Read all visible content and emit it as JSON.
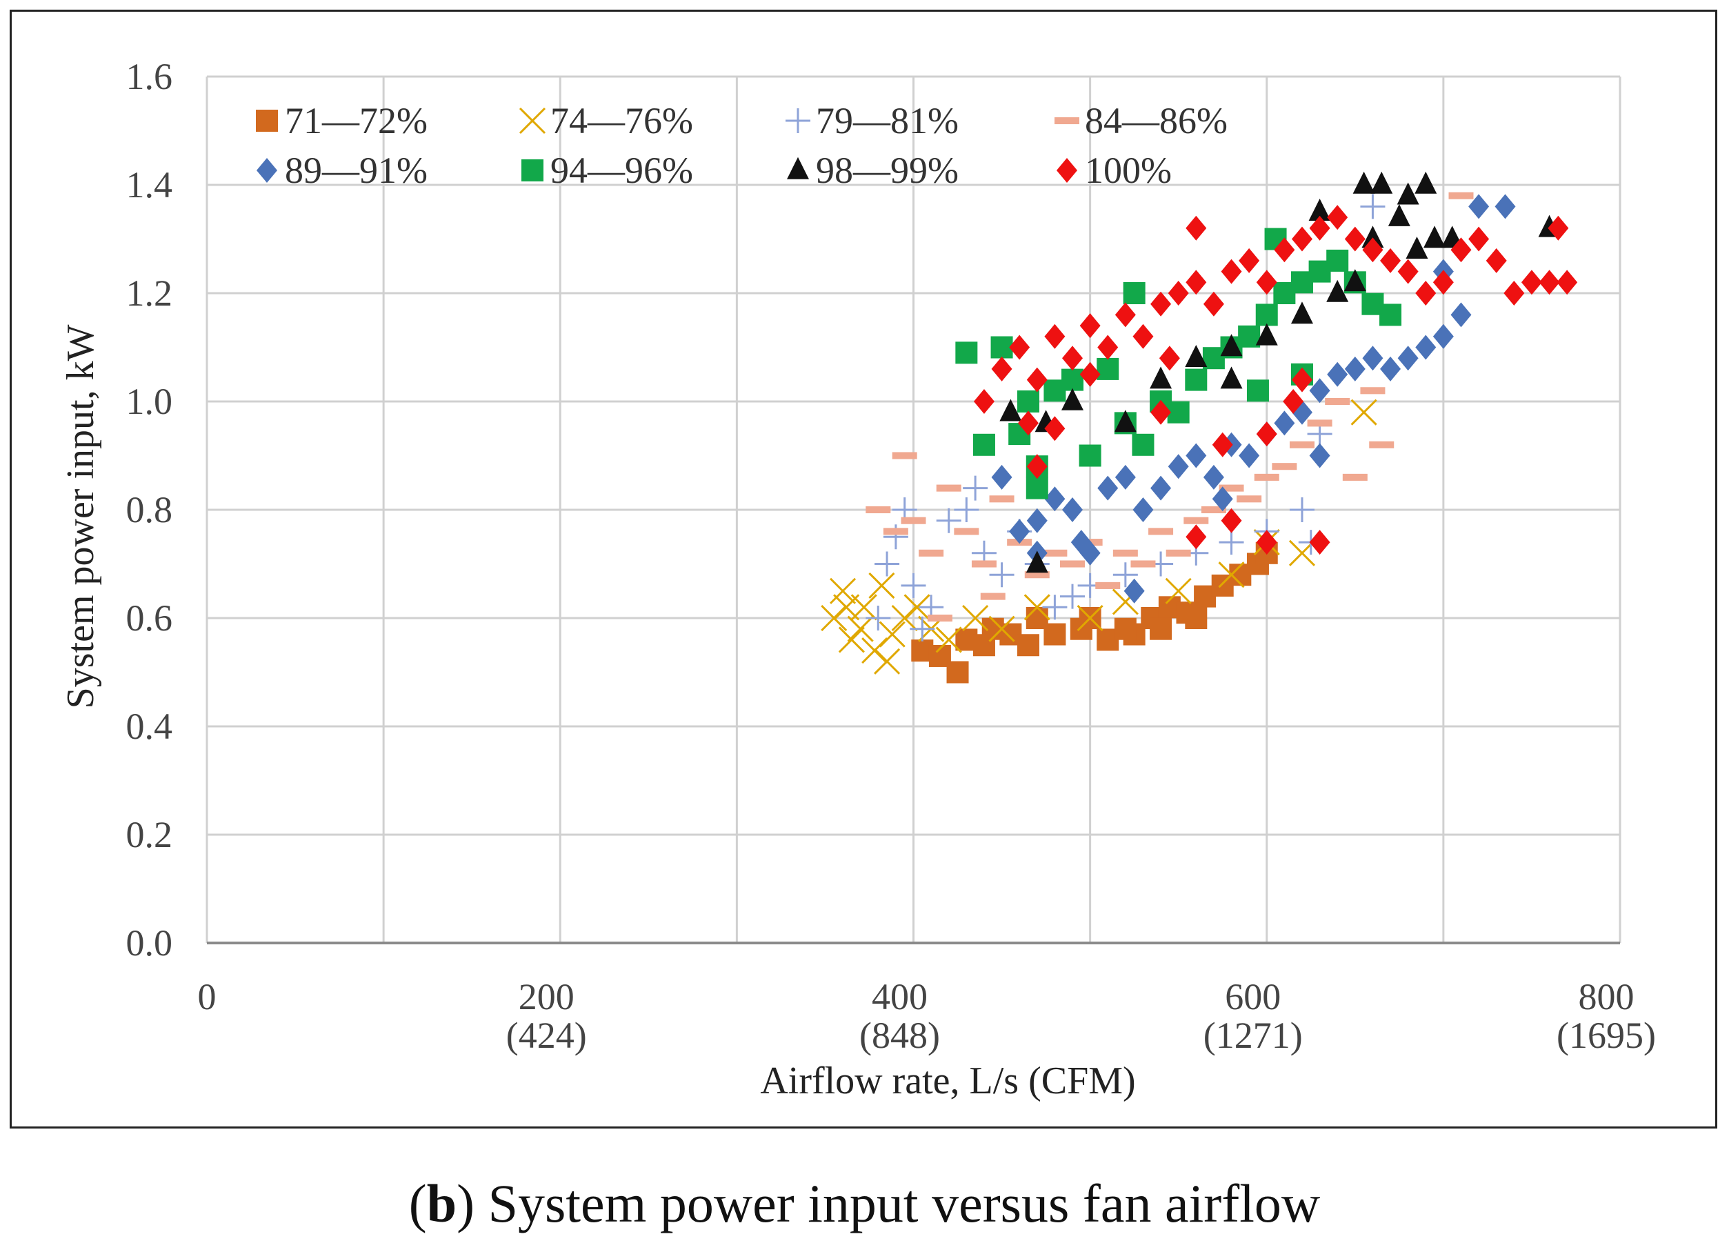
{
  "caption": {
    "panel": "b",
    "text": "System power input versus fan airflow"
  },
  "chart_data": {
    "type": "scatter",
    "title": "",
    "xlabel": "Airflow rate, L/s (CFM)",
    "ylabel": "System power input, kW",
    "xlim": [
      0,
      800
    ],
    "ylim": [
      0.0,
      1.6
    ],
    "x_ticks": [
      {
        "value": 0,
        "label": "0",
        "sub": ""
      },
      {
        "value": 200,
        "label": "200",
        "sub": "(424)"
      },
      {
        "value": 400,
        "label": "400",
        "sub": "(848)"
      },
      {
        "value": 600,
        "label": "600",
        "sub": "(1271)"
      },
      {
        "value": 800,
        "label": "800",
        "sub": "(1695)"
      }
    ],
    "x_gridlines": [
      0,
      100,
      200,
      300,
      400,
      500,
      600,
      700,
      800
    ],
    "y_ticks": [
      "0.0",
      "0.2",
      "0.4",
      "0.6",
      "0.8",
      "1.0",
      "1.2",
      "1.4",
      "1.6"
    ],
    "grid": true,
    "legend_position": "top-left",
    "series": [
      {
        "name": "71—72%",
        "marker": "square",
        "color": "#d2691e",
        "points": [
          [
            405,
            0.54
          ],
          [
            415,
            0.53
          ],
          [
            425,
            0.5
          ],
          [
            430,
            0.56
          ],
          [
            440,
            0.55
          ],
          [
            455,
            0.57
          ],
          [
            465,
            0.55
          ],
          [
            480,
            0.57
          ],
          [
            495,
            0.58
          ],
          [
            510,
            0.56
          ],
          [
            525,
            0.57
          ],
          [
            535,
            0.6
          ],
          [
            545,
            0.62
          ],
          [
            555,
            0.61
          ],
          [
            565,
            0.64
          ],
          [
            575,
            0.66
          ],
          [
            585,
            0.68
          ],
          [
            595,
            0.7
          ],
          [
            600,
            0.72
          ],
          [
            520,
            0.58
          ],
          [
            470,
            0.6
          ],
          [
            445,
            0.58
          ],
          [
            500,
            0.6
          ],
          [
            540,
            0.58
          ],
          [
            560,
            0.6
          ]
        ]
      },
      {
        "name": "74—76%",
        "marker": "cross",
        "color": "#e0a800",
        "points": [
          [
            355,
            0.6
          ],
          [
            360,
            0.65
          ],
          [
            365,
            0.56
          ],
          [
            370,
            0.58
          ],
          [
            372,
            0.62
          ],
          [
            378,
            0.54
          ],
          [
            382,
            0.66
          ],
          [
            388,
            0.57
          ],
          [
            395,
            0.6
          ],
          [
            402,
            0.62
          ],
          [
            410,
            0.58
          ],
          [
            420,
            0.56
          ],
          [
            435,
            0.6
          ],
          [
            450,
            0.58
          ],
          [
            470,
            0.62
          ],
          [
            500,
            0.6
          ],
          [
            520,
            0.63
          ],
          [
            550,
            0.65
          ],
          [
            580,
            0.68
          ],
          [
            600,
            0.74
          ],
          [
            620,
            0.72
          ],
          [
            655,
            0.98
          ],
          [
            385,
            0.52
          ],
          [
            362,
            0.62
          ]
        ]
      },
      {
        "name": "79—81%",
        "marker": "plus",
        "color": "#8ea3d8",
        "points": [
          [
            380,
            0.6
          ],
          [
            385,
            0.7
          ],
          [
            390,
            0.75
          ],
          [
            395,
            0.8
          ],
          [
            400,
            0.66
          ],
          [
            410,
            0.62
          ],
          [
            420,
            0.78
          ],
          [
            430,
            0.8
          ],
          [
            440,
            0.72
          ],
          [
            450,
            0.68
          ],
          [
            460,
            0.76
          ],
          [
            470,
            0.7
          ],
          [
            480,
            0.62
          ],
          [
            490,
            0.64
          ],
          [
            500,
            0.66
          ],
          [
            520,
            0.68
          ],
          [
            540,
            0.7
          ],
          [
            560,
            0.72
          ],
          [
            580,
            0.74
          ],
          [
            600,
            0.76
          ],
          [
            620,
            0.8
          ],
          [
            630,
            0.94
          ],
          [
            625,
            0.74
          ],
          [
            660,
            1.36
          ],
          [
            405,
            0.58
          ],
          [
            435,
            0.84
          ]
        ]
      },
      {
        "name": "84—86%",
        "marker": "dash",
        "color": "#f0a890",
        "points": [
          [
            380,
            0.8
          ],
          [
            390,
            0.76
          ],
          [
            400,
            0.78
          ],
          [
            410,
            0.72
          ],
          [
            420,
            0.84
          ],
          [
            430,
            0.76
          ],
          [
            440,
            0.7
          ],
          [
            450,
            0.82
          ],
          [
            460,
            0.74
          ],
          [
            470,
            0.68
          ],
          [
            480,
            0.72
          ],
          [
            490,
            0.7
          ],
          [
            500,
            0.74
          ],
          [
            510,
            0.66
          ],
          [
            520,
            0.72
          ],
          [
            530,
            0.7
          ],
          [
            540,
            0.76
          ],
          [
            550,
            0.72
          ],
          [
            560,
            0.78
          ],
          [
            570,
            0.8
          ],
          [
            580,
            0.84
          ],
          [
            590,
            0.82
          ],
          [
            600,
            0.86
          ],
          [
            610,
            0.88
          ],
          [
            620,
            0.92
          ],
          [
            630,
            0.96
          ],
          [
            640,
            1.0
          ],
          [
            660,
            1.02
          ],
          [
            710,
            1.38
          ],
          [
            665,
            0.92
          ],
          [
            650,
            0.86
          ],
          [
            395,
            0.9
          ],
          [
            415,
            0.6
          ],
          [
            445,
            0.64
          ]
        ]
      },
      {
        "name": "89—91%",
        "marker": "diamond",
        "color": "#4a72b8",
        "points": [
          [
            450,
            0.86
          ],
          [
            460,
            0.76
          ],
          [
            470,
            0.72
          ],
          [
            480,
            0.82
          ],
          [
            490,
            0.8
          ],
          [
            500,
            0.72
          ],
          [
            510,
            0.84
          ],
          [
            520,
            0.86
          ],
          [
            530,
            0.8
          ],
          [
            540,
            0.84
          ],
          [
            550,
            0.88
          ],
          [
            560,
            0.9
          ],
          [
            570,
            0.86
          ],
          [
            580,
            0.92
          ],
          [
            590,
            0.9
          ],
          [
            600,
            0.94
          ],
          [
            610,
            0.96
          ],
          [
            620,
            0.98
          ],
          [
            630,
            1.02
          ],
          [
            640,
            1.05
          ],
          [
            650,
            1.06
          ],
          [
            660,
            1.08
          ],
          [
            670,
            1.06
          ],
          [
            680,
            1.08
          ],
          [
            690,
            1.1
          ],
          [
            700,
            1.12
          ],
          [
            710,
            1.16
          ],
          [
            700,
            1.24
          ],
          [
            720,
            1.36
          ],
          [
            735,
            1.36
          ],
          [
            525,
            0.65
          ],
          [
            575,
            0.82
          ],
          [
            630,
            0.9
          ],
          [
            470,
            0.78
          ],
          [
            495,
            0.74
          ]
        ]
      },
      {
        "name": "94—96%",
        "marker": "square",
        "color": "#12a84a",
        "points": [
          [
            430,
            1.09
          ],
          [
            440,
            0.92
          ],
          [
            450,
            1.1
          ],
          [
            460,
            0.94
          ],
          [
            465,
            1.0
          ],
          [
            470,
            0.88
          ],
          [
            480,
            1.02
          ],
          [
            490,
            1.04
          ],
          [
            500,
            0.9
          ],
          [
            510,
            1.06
          ],
          [
            520,
            0.96
          ],
          [
            530,
            0.92
          ],
          [
            540,
            1.0
          ],
          [
            550,
            0.98
          ],
          [
            560,
            1.04
          ],
          [
            570,
            1.08
          ],
          [
            580,
            1.1
          ],
          [
            590,
            1.12
          ],
          [
            600,
            1.16
          ],
          [
            610,
            1.2
          ],
          [
            620,
            1.22
          ],
          [
            630,
            1.24
          ],
          [
            640,
            1.26
          ],
          [
            650,
            1.22
          ],
          [
            660,
            1.18
          ],
          [
            670,
            1.16
          ],
          [
            605,
            1.3
          ],
          [
            525,
            1.2
          ],
          [
            470,
            0.84
          ],
          [
            595,
            1.02
          ],
          [
            620,
            1.05
          ]
        ]
      },
      {
        "name": "98—99%",
        "marker": "triangle",
        "color": "#111111",
        "points": [
          [
            470,
            0.7
          ],
          [
            455,
            0.98
          ],
          [
            475,
            0.96
          ],
          [
            490,
            1.0
          ],
          [
            520,
            0.96
          ],
          [
            540,
            1.04
          ],
          [
            560,
            1.08
          ],
          [
            580,
            1.1
          ],
          [
            600,
            1.12
          ],
          [
            620,
            1.16
          ],
          [
            640,
            1.2
          ],
          [
            650,
            1.22
          ],
          [
            655,
            1.4
          ],
          [
            665,
            1.4
          ],
          [
            680,
            1.38
          ],
          [
            690,
            1.4
          ],
          [
            695,
            1.3
          ],
          [
            705,
            1.3
          ],
          [
            660,
            1.3
          ],
          [
            675,
            1.34
          ],
          [
            685,
            1.28
          ],
          [
            760,
            1.32
          ],
          [
            630,
            1.35
          ],
          [
            580,
            1.04
          ]
        ]
      },
      {
        "name": "100%",
        "marker": "diamond",
        "color": "#ee1111",
        "points": [
          [
            440,
            1.0
          ],
          [
            450,
            1.06
          ],
          [
            460,
            1.1
          ],
          [
            465,
            0.96
          ],
          [
            470,
            1.04
          ],
          [
            480,
            1.12
          ],
          [
            490,
            1.08
          ],
          [
            500,
            1.14
          ],
          [
            510,
            1.1
          ],
          [
            520,
            1.16
          ],
          [
            530,
            1.12
          ],
          [
            540,
            1.18
          ],
          [
            550,
            1.2
          ],
          [
            560,
            1.22
          ],
          [
            570,
            1.18
          ],
          [
            580,
            1.24
          ],
          [
            590,
            1.26
          ],
          [
            600,
            1.22
          ],
          [
            610,
            1.28
          ],
          [
            620,
            1.3
          ],
          [
            630,
            1.32
          ],
          [
            640,
            1.34
          ],
          [
            650,
            1.3
          ],
          [
            660,
            1.28
          ],
          [
            670,
            1.26
          ],
          [
            680,
            1.24
          ],
          [
            690,
            1.2
          ],
          [
            700,
            1.22
          ],
          [
            710,
            1.28
          ],
          [
            720,
            1.3
          ],
          [
            730,
            1.26
          ],
          [
            740,
            1.2
          ],
          [
            750,
            1.22
          ],
          [
            760,
            1.22
          ],
          [
            770,
            1.22
          ],
          [
            765,
            1.32
          ],
          [
            560,
            1.32
          ],
          [
            620,
            1.04
          ],
          [
            580,
            0.78
          ],
          [
            560,
            0.75
          ],
          [
            600,
            0.74
          ],
          [
            630,
            0.74
          ],
          [
            500,
            1.05
          ],
          [
            540,
            0.98
          ],
          [
            470,
            0.88
          ],
          [
            600,
            0.94
          ],
          [
            575,
            0.92
          ],
          [
            480,
            0.95
          ],
          [
            615,
            1.0
          ],
          [
            545,
            1.08
          ]
        ]
      }
    ]
  }
}
